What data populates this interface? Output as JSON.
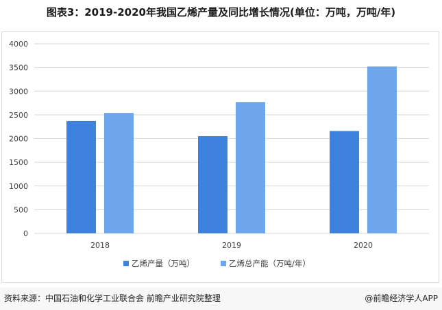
{
  "title": "图表3：2019-2020年我国乙烯产量及同比增长情况(单位：万吨，万吨/年)",
  "source": "资料来源：中国石油和化学工业联合会 前瞻产业研究院整理",
  "brand": "@前瞻经济学人APP",
  "colors": {
    "series1": "#3e82de",
    "series2": "#6ea6ec",
    "grid": "#d9d9d9",
    "text": "#404040"
  },
  "chart_data": {
    "type": "bar",
    "title": "图表3：2019-2020年我国乙烯产量及同比增长情况(单位：万吨，万吨/年)",
    "categories": [
      "2018",
      "2019",
      "2020"
    ],
    "series": [
      {
        "name": "乙烯产量（万吨）",
        "values": [
          2370,
          2050,
          2160
        ]
      },
      {
        "name": "乙烯总产能（万吨/年）",
        "values": [
          2540,
          2770,
          3520
        ]
      }
    ],
    "yticks": [
      "0",
      "500",
      "1000",
      "1500",
      "2000",
      "2500",
      "3000",
      "3500",
      "4000"
    ],
    "ylim": [
      0,
      4000
    ],
    "xlabel": "",
    "ylabel": "",
    "grid": true,
    "legend": "bottom"
  }
}
